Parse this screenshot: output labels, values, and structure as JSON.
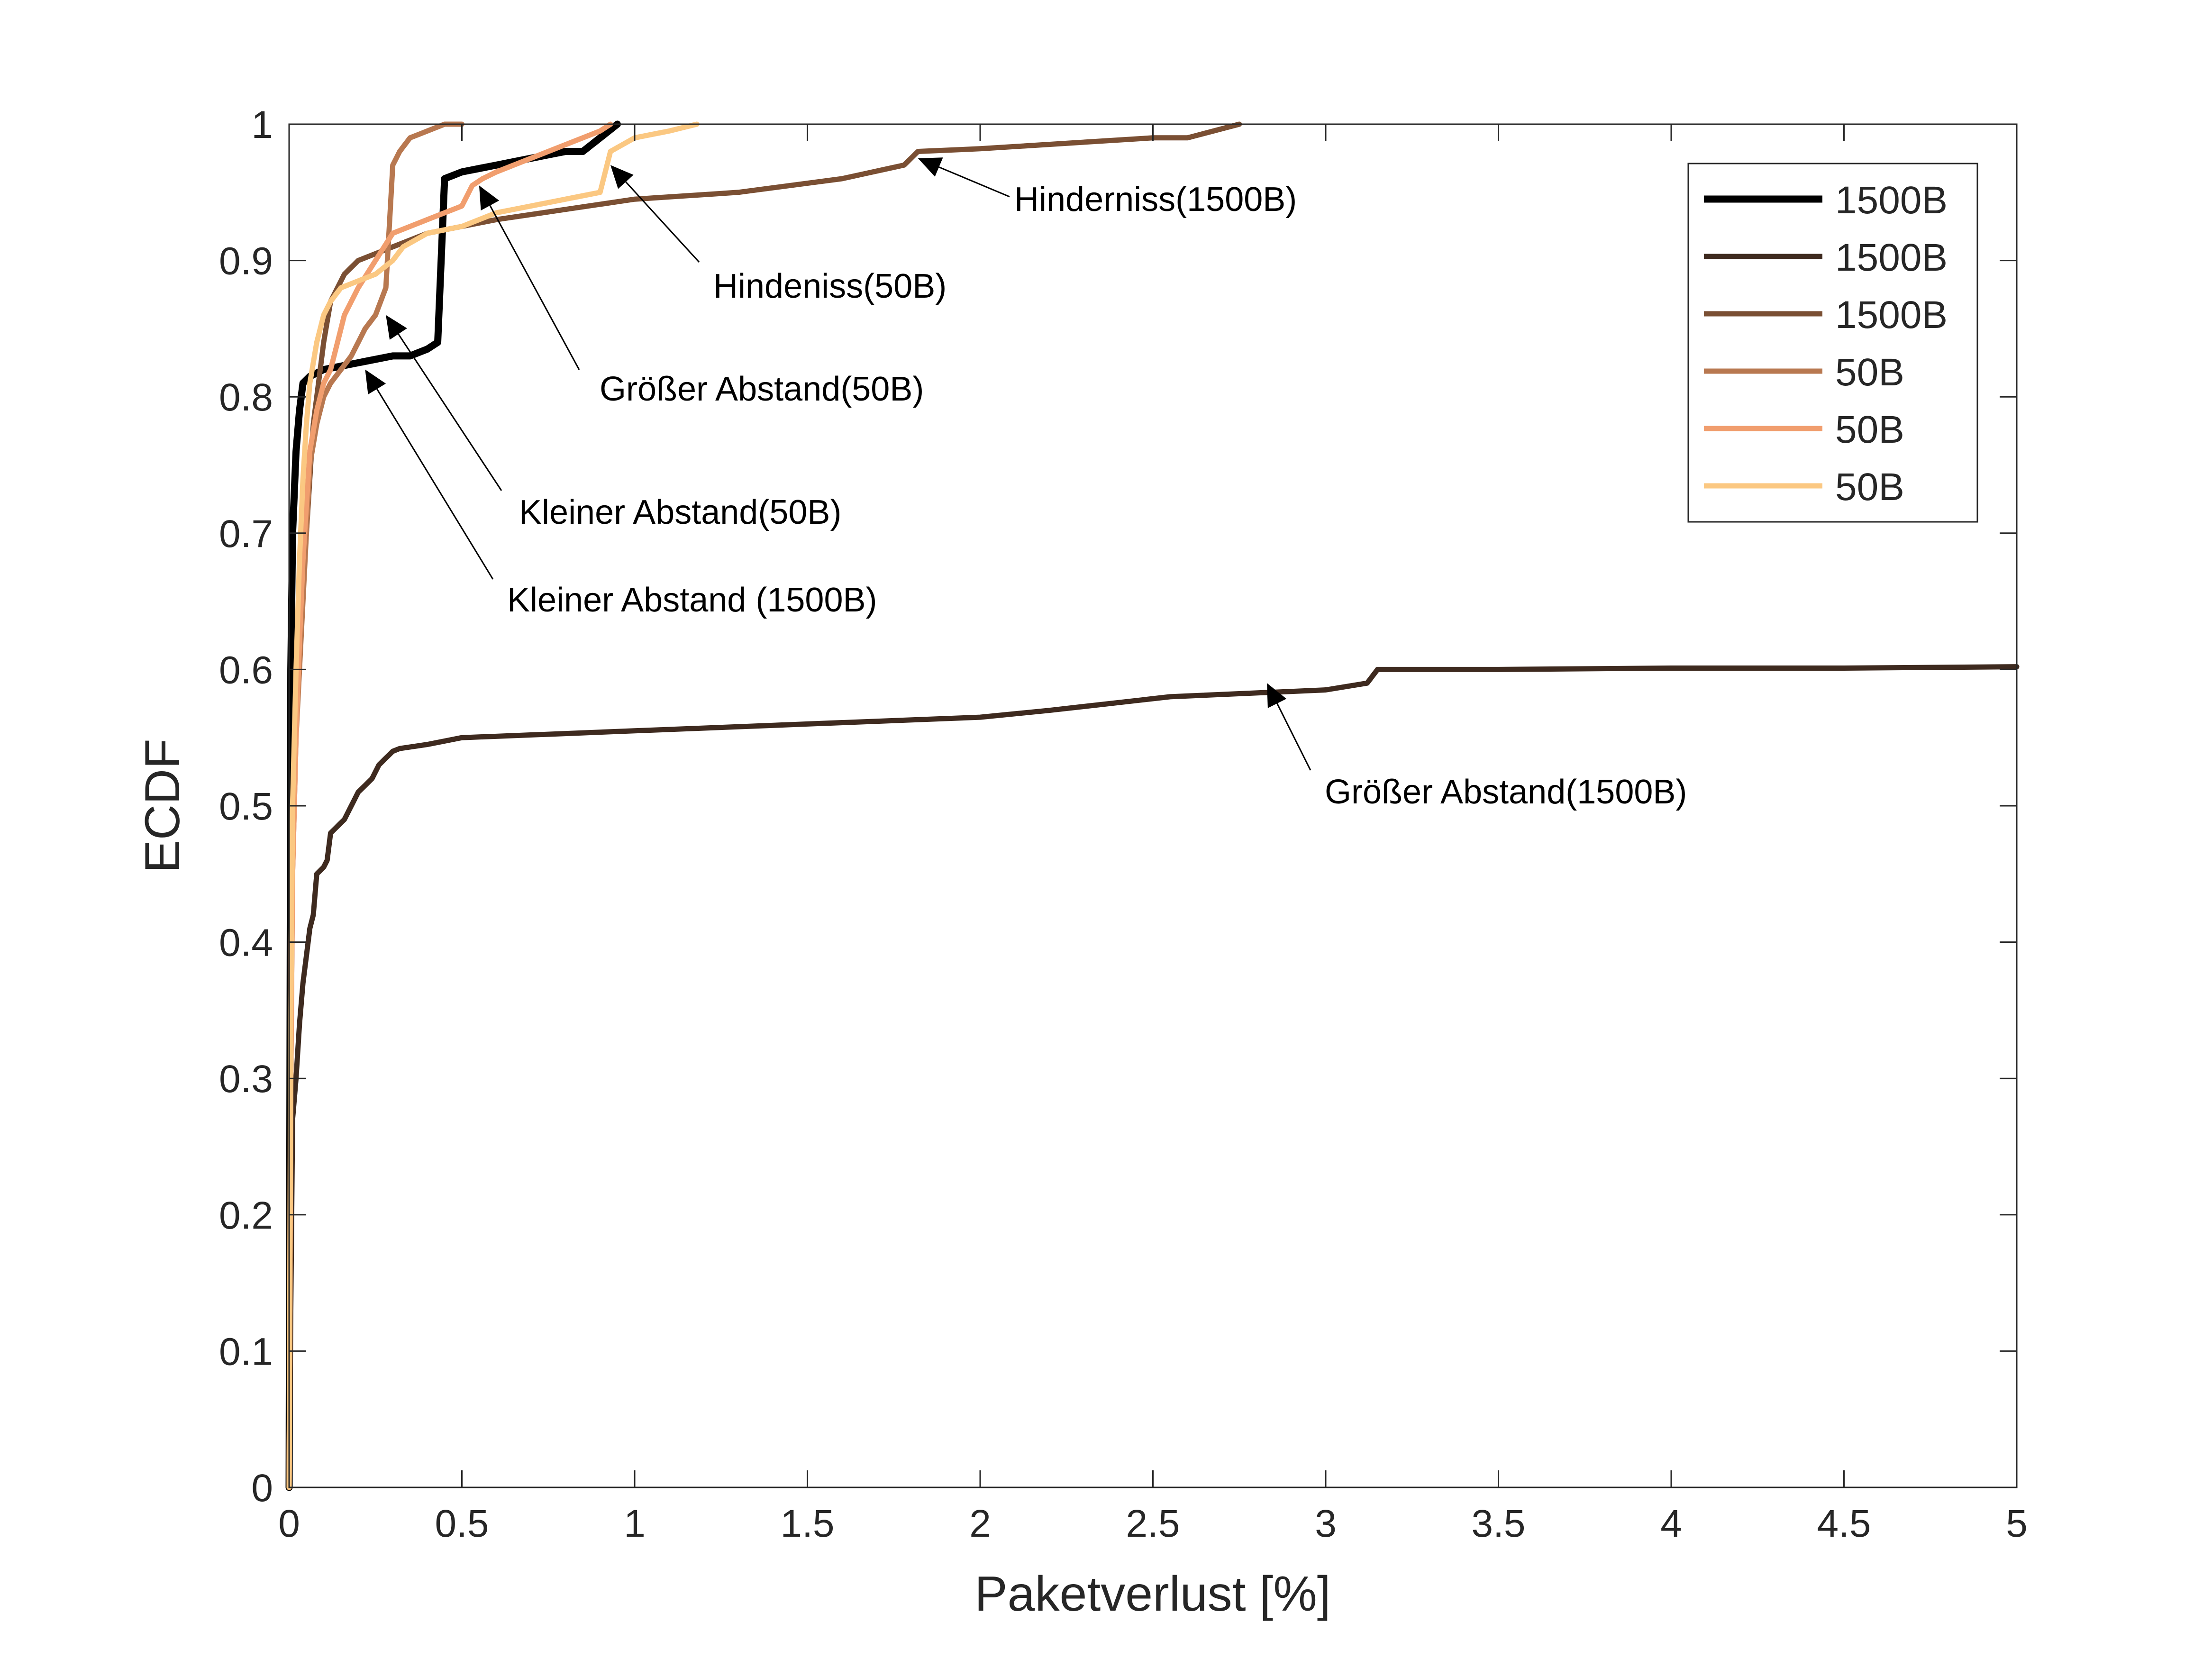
{
  "chart_data": {
    "type": "line",
    "title": "",
    "xlabel": "Paketverlust [%]",
    "ylabel": "ECDF",
    "xlim": [
      0,
      5
    ],
    "ylim": [
      0,
      1
    ],
    "xticks": [
      0,
      0.5,
      1,
      1.5,
      2,
      2.5,
      3,
      3.5,
      4,
      4.5,
      5
    ],
    "xtick_labels": [
      "0",
      "0.5",
      "1",
      "1.5",
      "2",
      "2.5",
      "3",
      "3.5",
      "4",
      "4.5",
      "5"
    ],
    "yticks": [
      0,
      0.1,
      0.2,
      0.3,
      0.4,
      0.5,
      0.6,
      0.7,
      0.8,
      0.9,
      1
    ],
    "ytick_labels": [
      "0",
      "0.1",
      "0.2",
      "0.3",
      "0.4",
      "0.5",
      "0.6",
      "0.7",
      "0.8",
      "0.9",
      "1"
    ],
    "grid": false,
    "legend_position": "top-right",
    "series": [
      {
        "name": "1500B",
        "color": "#000000",
        "x": [
          0,
          0.005,
          0.01,
          0.02,
          0.03,
          0.04,
          0.06,
          0.1,
          0.2,
          0.3,
          0.35,
          0.4,
          0.43,
          0.45,
          0.5,
          0.6,
          0.7,
          0.8,
          0.85,
          0.9,
          0.95
        ],
        "y": [
          0,
          0.6,
          0.7,
          0.76,
          0.79,
          0.81,
          0.815,
          0.82,
          0.825,
          0.83,
          0.83,
          0.835,
          0.84,
          0.96,
          0.965,
          0.97,
          0.975,
          0.98,
          0.98,
          0.99,
          1.0
        ]
      },
      {
        "name": "1500B",
        "color": "#3e2a1f",
        "x": [
          0,
          0.01,
          0.02,
          0.03,
          0.04,
          0.05,
          0.06,
          0.07,
          0.08,
          0.1,
          0.11,
          0.12,
          0.14,
          0.16,
          0.18,
          0.2,
          0.22,
          0.24,
          0.26,
          0.28,
          0.3,
          0.32,
          0.4,
          0.5,
          0.8,
          1.0,
          1.5,
          2.0,
          2.2,
          2.55,
          3.0,
          3.12,
          3.15,
          3.5,
          4.0,
          4.5,
          5.0
        ],
        "y": [
          0,
          0.27,
          0.3,
          0.34,
          0.37,
          0.39,
          0.41,
          0.42,
          0.45,
          0.455,
          0.46,
          0.48,
          0.485,
          0.49,
          0.5,
          0.51,
          0.515,
          0.52,
          0.53,
          0.535,
          0.54,
          0.542,
          0.545,
          0.55,
          0.553,
          0.555,
          0.56,
          0.565,
          0.57,
          0.58,
          0.585,
          0.59,
          0.6,
          0.6,
          0.601,
          0.601,
          0.602
        ]
      },
      {
        "name": "1500B",
        "color": "#7a4f33",
        "x": [
          0,
          0.005,
          0.01,
          0.02,
          0.03,
          0.04,
          0.05,
          0.06,
          0.07,
          0.08,
          0.09,
          0.1,
          0.12,
          0.14,
          0.16,
          0.2,
          0.3,
          0.4,
          0.6,
          1.0,
          1.3,
          1.6,
          1.78,
          1.82,
          2.0,
          2.5,
          2.6,
          2.75
        ],
        "y": [
          0,
          0.4,
          0.5,
          0.58,
          0.62,
          0.66,
          0.7,
          0.74,
          0.78,
          0.8,
          0.82,
          0.84,
          0.87,
          0.88,
          0.89,
          0.9,
          0.91,
          0.92,
          0.93,
          0.945,
          0.95,
          0.96,
          0.97,
          0.98,
          0.982,
          0.99,
          0.99,
          1.0
        ]
      },
      {
        "name": "50B",
        "color": "#b87850",
        "x": [
          0,
          0.005,
          0.01,
          0.02,
          0.03,
          0.04,
          0.05,
          0.06,
          0.08,
          0.1,
          0.12,
          0.15,
          0.18,
          0.2,
          0.22,
          0.25,
          0.28,
          0.3,
          0.32,
          0.35,
          0.4,
          0.45,
          0.5
        ],
        "y": [
          0,
          0.3,
          0.45,
          0.55,
          0.6,
          0.65,
          0.7,
          0.75,
          0.78,
          0.8,
          0.81,
          0.82,
          0.83,
          0.84,
          0.85,
          0.86,
          0.88,
          0.97,
          0.98,
          0.99,
          0.995,
          1.0,
          1.0
        ]
      },
      {
        "name": "50B",
        "color": "#f19e6e",
        "x": [
          0,
          0.005,
          0.01,
          0.02,
          0.03,
          0.04,
          0.05,
          0.06,
          0.08,
          0.1,
          0.12,
          0.14,
          0.16,
          0.18,
          0.2,
          0.25,
          0.3,
          0.4,
          0.5,
          0.53,
          0.56,
          0.6,
          0.7,
          0.8,
          0.9,
          0.93
        ],
        "y": [
          0,
          0.3,
          0.45,
          0.55,
          0.62,
          0.68,
          0.72,
          0.76,
          0.79,
          0.81,
          0.82,
          0.84,
          0.86,
          0.87,
          0.88,
          0.9,
          0.92,
          0.93,
          0.94,
          0.955,
          0.96,
          0.965,
          0.975,
          0.985,
          0.995,
          1.0
        ]
      },
      {
        "name": "50B",
        "color": "#fbc882",
        "x": [
          0,
          0.005,
          0.01,
          0.02,
          0.03,
          0.04,
          0.05,
          0.06,
          0.08,
          0.1,
          0.12,
          0.15,
          0.2,
          0.25,
          0.3,
          0.33,
          0.4,
          0.5,
          0.6,
          0.7,
          0.8,
          0.9,
          0.93,
          1.0,
          1.1,
          1.18
        ],
        "y": [
          0,
          0.35,
          0.5,
          0.6,
          0.68,
          0.74,
          0.78,
          0.81,
          0.84,
          0.86,
          0.87,
          0.88,
          0.885,
          0.89,
          0.9,
          0.91,
          0.92,
          0.925,
          0.935,
          0.94,
          0.945,
          0.95,
          0.98,
          0.99,
          0.995,
          1.0
        ]
      }
    ],
    "annotations": [
      {
        "text": "Hinderniss(1500B)",
        "arrow_x": 1.82,
        "arrow_y": 0.975
      },
      {
        "text": "Hindeniss(50B)",
        "arrow_x": 0.93,
        "arrow_y": 0.97
      },
      {
        "text": "Größer Abstand(50B)",
        "arrow_x": 0.55,
        "arrow_y": 0.955
      },
      {
        "text": "Kleiner Abstand(50B)",
        "arrow_x": 0.28,
        "arrow_y": 0.86
      },
      {
        "text": "Kleiner Abstand (1500B)",
        "arrow_x": 0.22,
        "arrow_y": 0.82
      },
      {
        "text": "Größer Abstand(1500B)",
        "arrow_x": 2.83,
        "arrow_y": 0.59
      }
    ]
  }
}
